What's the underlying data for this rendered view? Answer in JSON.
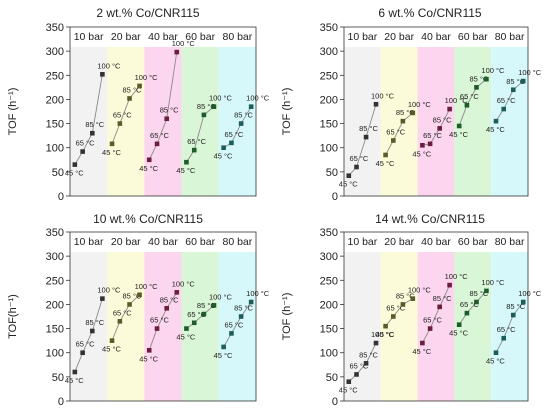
{
  "chart_data": [
    {
      "type": "line",
      "title": "2 wt.% Co/CNR115",
      "ylabel": "TOF (h⁻¹)",
      "ylim": [
        0,
        350
      ],
      "yticks": [
        "0",
        "50",
        "100",
        "150",
        "200",
        "250",
        "300",
        "350"
      ],
      "pressure_labels": [
        "10 bar",
        "20 bar",
        "40 bar",
        "60 bar",
        "80 bar"
      ],
      "temperature_labels": [
        "45 °C",
        "65 °C",
        "85 °C",
        "100 °C"
      ],
      "series": [
        {
          "name": "10 bar",
          "values": [
            65,
            92,
            130,
            252
          ]
        },
        {
          "name": "20 bar",
          "values": [
            108,
            150,
            202,
            228
          ]
        },
        {
          "name": "40 bar",
          "values": [
            75,
            108,
            160,
            298
          ]
        },
        {
          "name": "60 bar",
          "values": [
            70,
            95,
            168,
            185
          ]
        },
        {
          "name": "80 bar",
          "values": [
            100,
            110,
            150,
            185
          ]
        }
      ]
    },
    {
      "type": "line",
      "title": "6 wt.% Co/CNR115",
      "ylabel": "TOF (h⁻¹)",
      "ylim": [
        0,
        350
      ],
      "yticks": [
        "0",
        "50",
        "100",
        "150",
        "200",
        "250",
        "300",
        "350"
      ],
      "pressure_labels": [
        "10 bar",
        "20 bar",
        "40 bar",
        "60 bar",
        "80 bar"
      ],
      "temperature_labels": [
        "45 °C",
        "65 °C",
        "85 °C",
        "100 °C"
      ],
      "series": [
        {
          "name": "10 bar",
          "values": [
            42,
            60,
            122,
            190
          ]
        },
        {
          "name": "20 bar",
          "values": [
            85,
            115,
            155,
            172
          ]
        },
        {
          "name": "40 bar",
          "values": [
            105,
            108,
            140,
            180
          ]
        },
        {
          "name": "60 bar",
          "values": [
            145,
            188,
            225,
            242
          ]
        },
        {
          "name": "80 bar",
          "values": [
            155,
            180,
            220,
            238
          ]
        }
      ]
    },
    {
      "type": "line",
      "title": "10 wt.% Co/CNR115",
      "ylabel": "TOF(h⁻¹)",
      "ylim": [
        0,
        350
      ],
      "yticks": [
        "0",
        "50",
        "100",
        "150",
        "200",
        "250",
        "300",
        "350"
      ],
      "pressure_labels": [
        "10 bar",
        "20 bar",
        "40 bar",
        "60 bar",
        "80 bar"
      ],
      "temperature_labels": [
        "45 °C",
        "65 °C",
        "85 °C",
        "100 °C"
      ],
      "series": [
        {
          "name": "10 bar",
          "values": [
            60,
            100,
            145,
            212
          ]
        },
        {
          "name": "20 bar",
          "values": [
            125,
            165,
            200,
            220
          ]
        },
        {
          "name": "40 bar",
          "values": [
            105,
            150,
            192,
            225
          ]
        },
        {
          "name": "60 bar",
          "values": [
            150,
            162,
            180,
            198
          ]
        },
        {
          "name": "80 bar",
          "values": [
            112,
            140,
            175,
            205
          ]
        }
      ]
    },
    {
      "type": "line",
      "title": "14 wt.% Co/CNR115",
      "ylabel": "TOF (h⁻¹)",
      "ylim": [
        0,
        350
      ],
      "yticks": [
        "0",
        "50",
        "100",
        "150",
        "200",
        "250",
        "300",
        "350"
      ],
      "pressure_labels": [
        "10 bar",
        "20 bar",
        "40 bar",
        "60 bar",
        "80 bar"
      ],
      "temperature_labels": [
        "45 °C",
        "65 °C",
        "85 °C",
        "100 °C"
      ],
      "series": [
        {
          "name": "10 bar",
          "values": [
            40,
            55,
            78,
            120
          ]
        },
        {
          "name": "20 bar",
          "values": [
            155,
            175,
            200,
            212
          ]
        },
        {
          "name": "40 bar",
          "values": [
            120,
            150,
            195,
            240
          ]
        },
        {
          "name": "60 bar",
          "values": [
            158,
            182,
            205,
            228
          ]
        },
        {
          "name": "80 bar",
          "values": [
            100,
            130,
            178,
            205
          ]
        }
      ]
    }
  ],
  "colors": {
    "band_fills": [
      "#f2f2f2",
      "#fbfbd9",
      "#fcd5ee",
      "#d9f6d6",
      "#d6f8fa"
    ],
    "marker_colors": [
      "#333333",
      "#5a5a2a",
      "#6a1f3c",
      "#1f5a2a",
      "#1f5c5c"
    ],
    "line_color": "#8a8a8a",
    "axis_color": "#333333"
  }
}
